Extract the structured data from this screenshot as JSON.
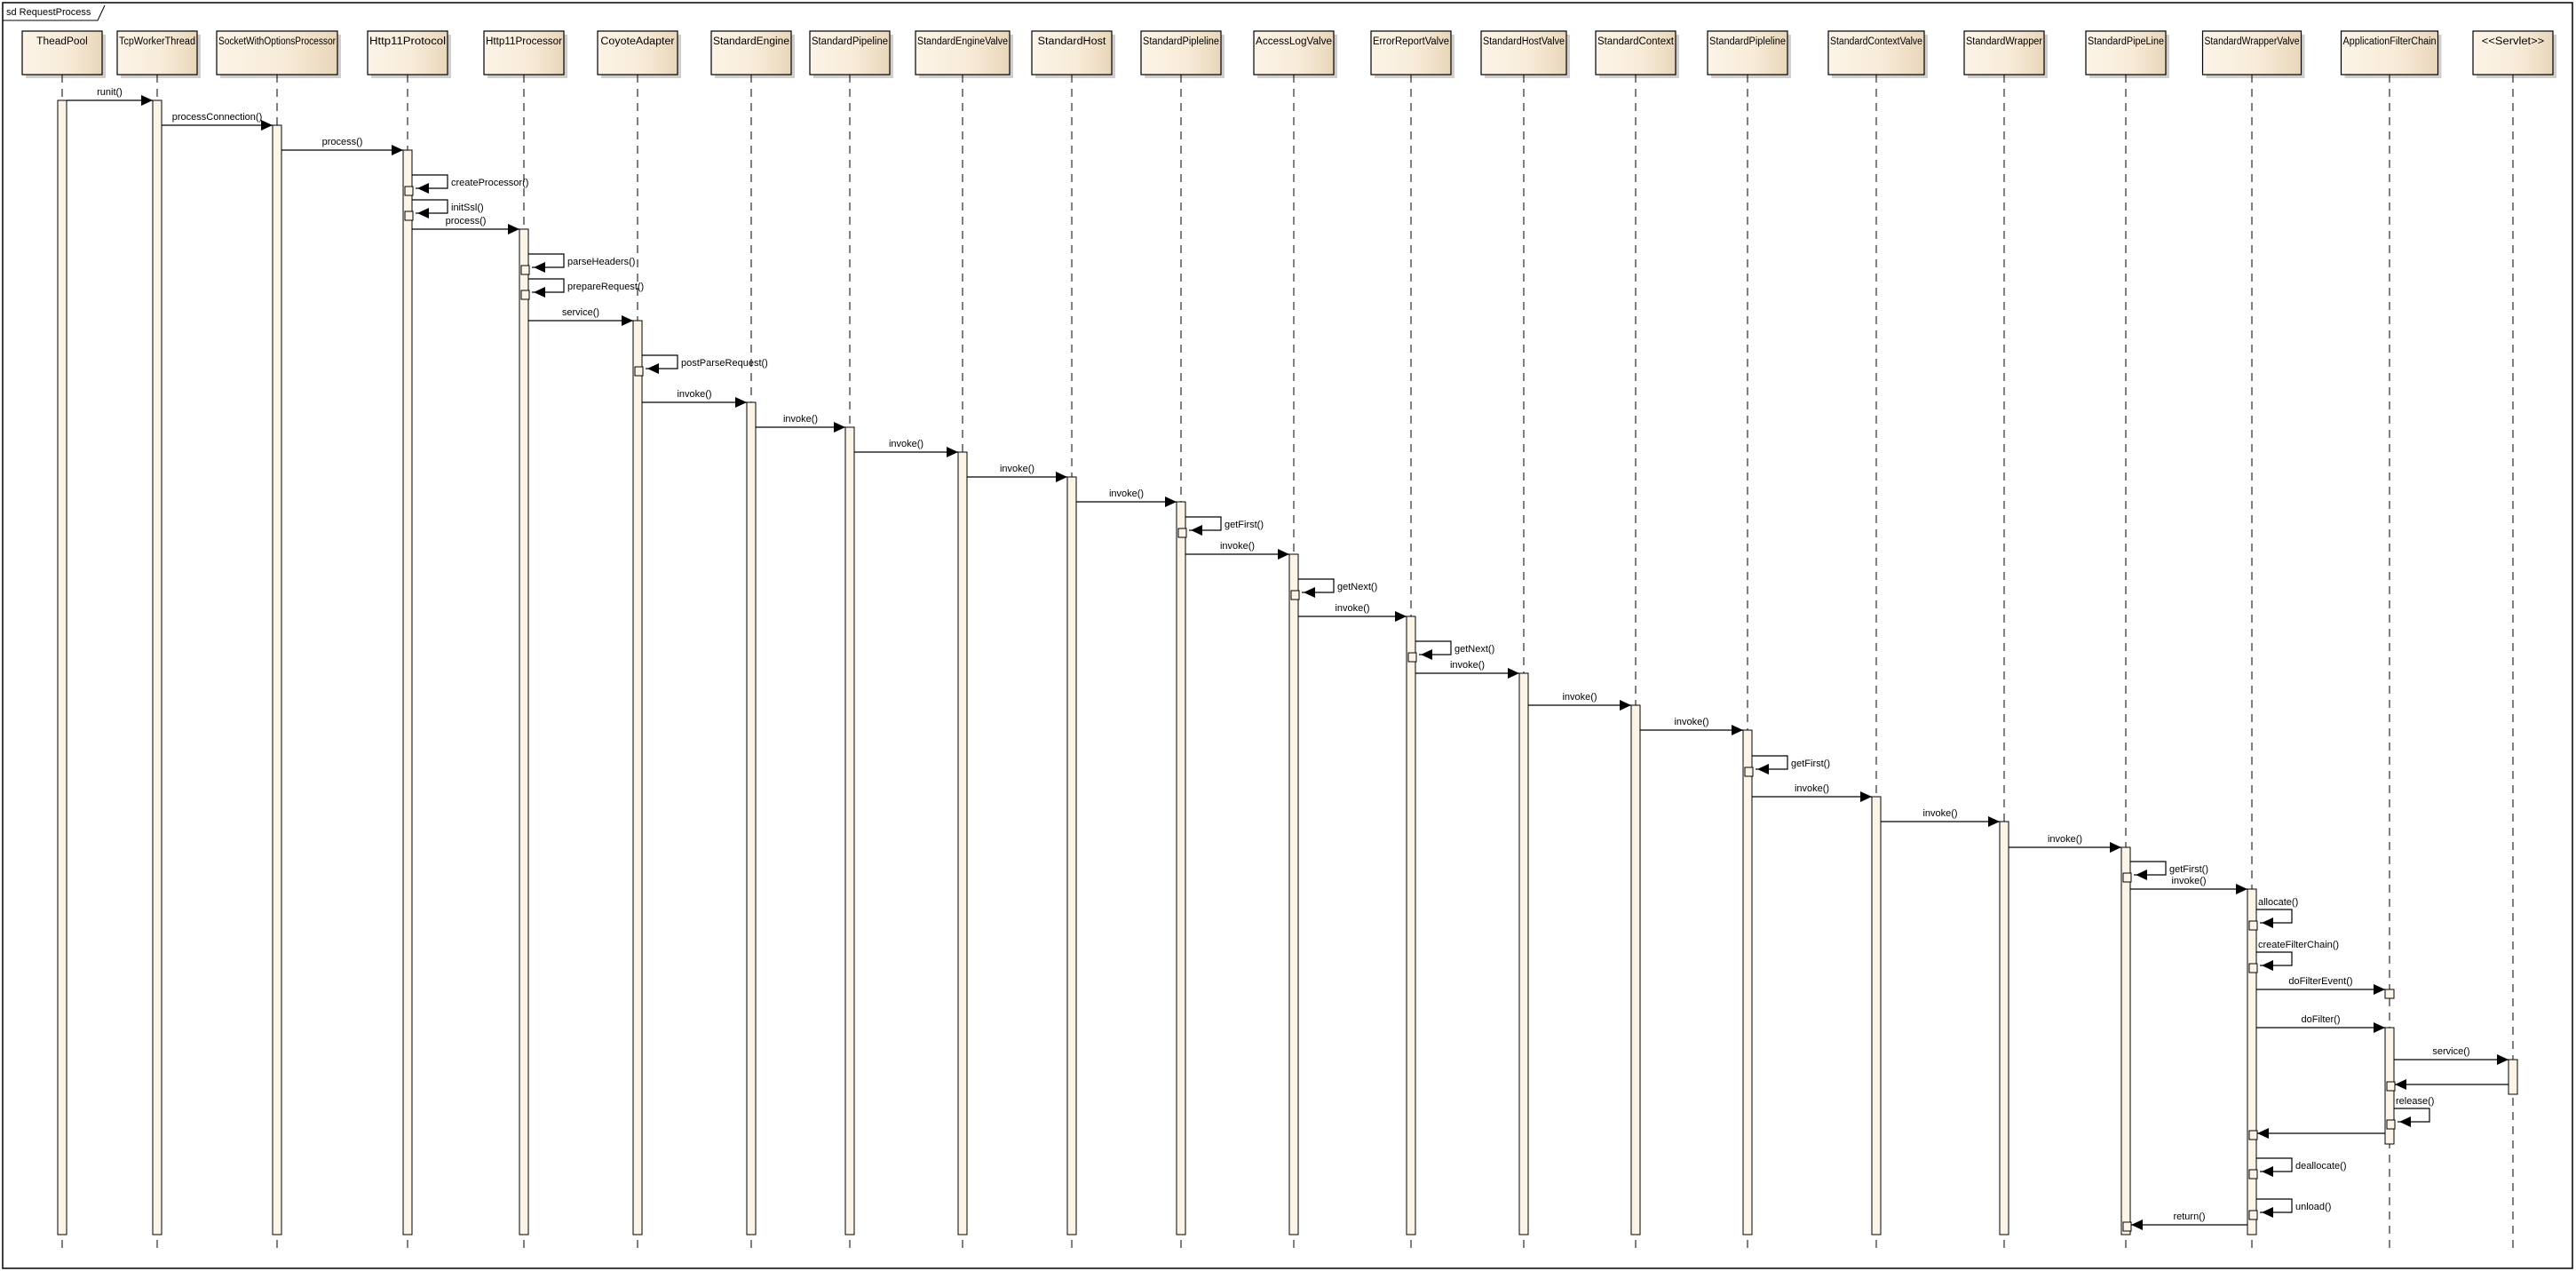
{
  "frame": {
    "title": "sd RequestProcess"
  },
  "colors": {
    "box_light": "#fcf4e8",
    "box_dark": "#e8d6ba",
    "activation": "#fdf4e8",
    "line": "#000000",
    "shadow": "#a0a0a0"
  },
  "lifelines": [
    "TheadPool",
    "TcpWorkerThread",
    "SocketWithOptionsProcessor",
    "Http11Protocol",
    "Http11Processor",
    "CoyoteAdapter",
    "StandardEngine",
    "StandardPipeline",
    "StandardEngineValve",
    "StandardHost",
    "StandardPipleline",
    "AccessLogValve",
    "ErrorReportValve",
    "StandardHostValve",
    "StandardContext",
    "StandardPipleline",
    "StandardContextValve",
    "StandardWrapper",
    "StandardPipeLine",
    "StandardWrapperValve",
    "ApplicationFilterChain",
    "<<Servlet>>"
  ],
  "messages": [
    {
      "label": "runit()",
      "from": 0,
      "to": 1,
      "kind": "call"
    },
    {
      "label": "processConnection()",
      "from": 1,
      "to": 2,
      "kind": "call"
    },
    {
      "label": "process()",
      "from": 2,
      "to": 3,
      "kind": "call"
    },
    {
      "label": "createProcessor()",
      "from": 3,
      "to": 3,
      "kind": "self"
    },
    {
      "label": "initSsl()",
      "from": 3,
      "to": 3,
      "kind": "self"
    },
    {
      "label": "process()",
      "from": 3,
      "to": 4,
      "kind": "call"
    },
    {
      "label": "parseHeaders()",
      "from": 4,
      "to": 4,
      "kind": "self"
    },
    {
      "label": "prepareRequest()",
      "from": 4,
      "to": 4,
      "kind": "self"
    },
    {
      "label": "service()",
      "from": 4,
      "to": 5,
      "kind": "call"
    },
    {
      "label": "postParseRequest()",
      "from": 5,
      "to": 5,
      "kind": "self"
    },
    {
      "label": "invoke()",
      "from": 5,
      "to": 6,
      "kind": "call"
    },
    {
      "label": "invoke()",
      "from": 6,
      "to": 7,
      "kind": "call"
    },
    {
      "label": "invoke()",
      "from": 7,
      "to": 8,
      "kind": "call"
    },
    {
      "label": "invoke()",
      "from": 8,
      "to": 9,
      "kind": "call"
    },
    {
      "label": "invoke()",
      "from": 9,
      "to": 10,
      "kind": "call"
    },
    {
      "label": "getFirst()",
      "from": 10,
      "to": 10,
      "kind": "self"
    },
    {
      "label": "invoke()",
      "from": 10,
      "to": 11,
      "kind": "call"
    },
    {
      "label": "getNext()",
      "from": 11,
      "to": 11,
      "kind": "self"
    },
    {
      "label": "invoke()",
      "from": 11,
      "to": 12,
      "kind": "call"
    },
    {
      "label": "getNext()",
      "from": 12,
      "to": 12,
      "kind": "self"
    },
    {
      "label": "invoke()",
      "from": 12,
      "to": 13,
      "kind": "call"
    },
    {
      "label": "invoke()",
      "from": 13,
      "to": 14,
      "kind": "call"
    },
    {
      "label": "invoke()",
      "from": 14,
      "to": 15,
      "kind": "call"
    },
    {
      "label": "getFirst()",
      "from": 15,
      "to": 15,
      "kind": "self"
    },
    {
      "label": "invoke()",
      "from": 15,
      "to": 16,
      "kind": "call"
    },
    {
      "label": "invoke()",
      "from": 16,
      "to": 17,
      "kind": "call"
    },
    {
      "label": "invoke()",
      "from": 17,
      "to": 18,
      "kind": "call"
    },
    {
      "label": "getFirst()",
      "from": 18,
      "to": 18,
      "kind": "self"
    },
    {
      "label": "invoke()",
      "from": 18,
      "to": 19,
      "kind": "call"
    },
    {
      "label": "allocate()",
      "from": 19,
      "to": 19,
      "kind": "self"
    },
    {
      "label": "createFilterChain()",
      "from": 19,
      "to": 19,
      "kind": "self"
    },
    {
      "label": "doFilterEvent()",
      "from": 19,
      "to": 20,
      "kind": "call"
    },
    {
      "label": "doFilter()",
      "from": 19,
      "to": 20,
      "kind": "call"
    },
    {
      "label": "service()",
      "from": 20,
      "to": 21,
      "kind": "call"
    },
    {
      "label": "",
      "from": 21,
      "to": 20,
      "kind": "return"
    },
    {
      "label": "release()",
      "from": 20,
      "to": 20,
      "kind": "self"
    },
    {
      "label": "",
      "from": 20,
      "to": 19,
      "kind": "return"
    },
    {
      "label": "deallocate()",
      "from": 19,
      "to": 19,
      "kind": "self"
    },
    {
      "label": "unload()",
      "from": 19,
      "to": 19,
      "kind": "self"
    },
    {
      "label": "return()",
      "from": 19,
      "to": 18,
      "kind": "return"
    }
  ]
}
